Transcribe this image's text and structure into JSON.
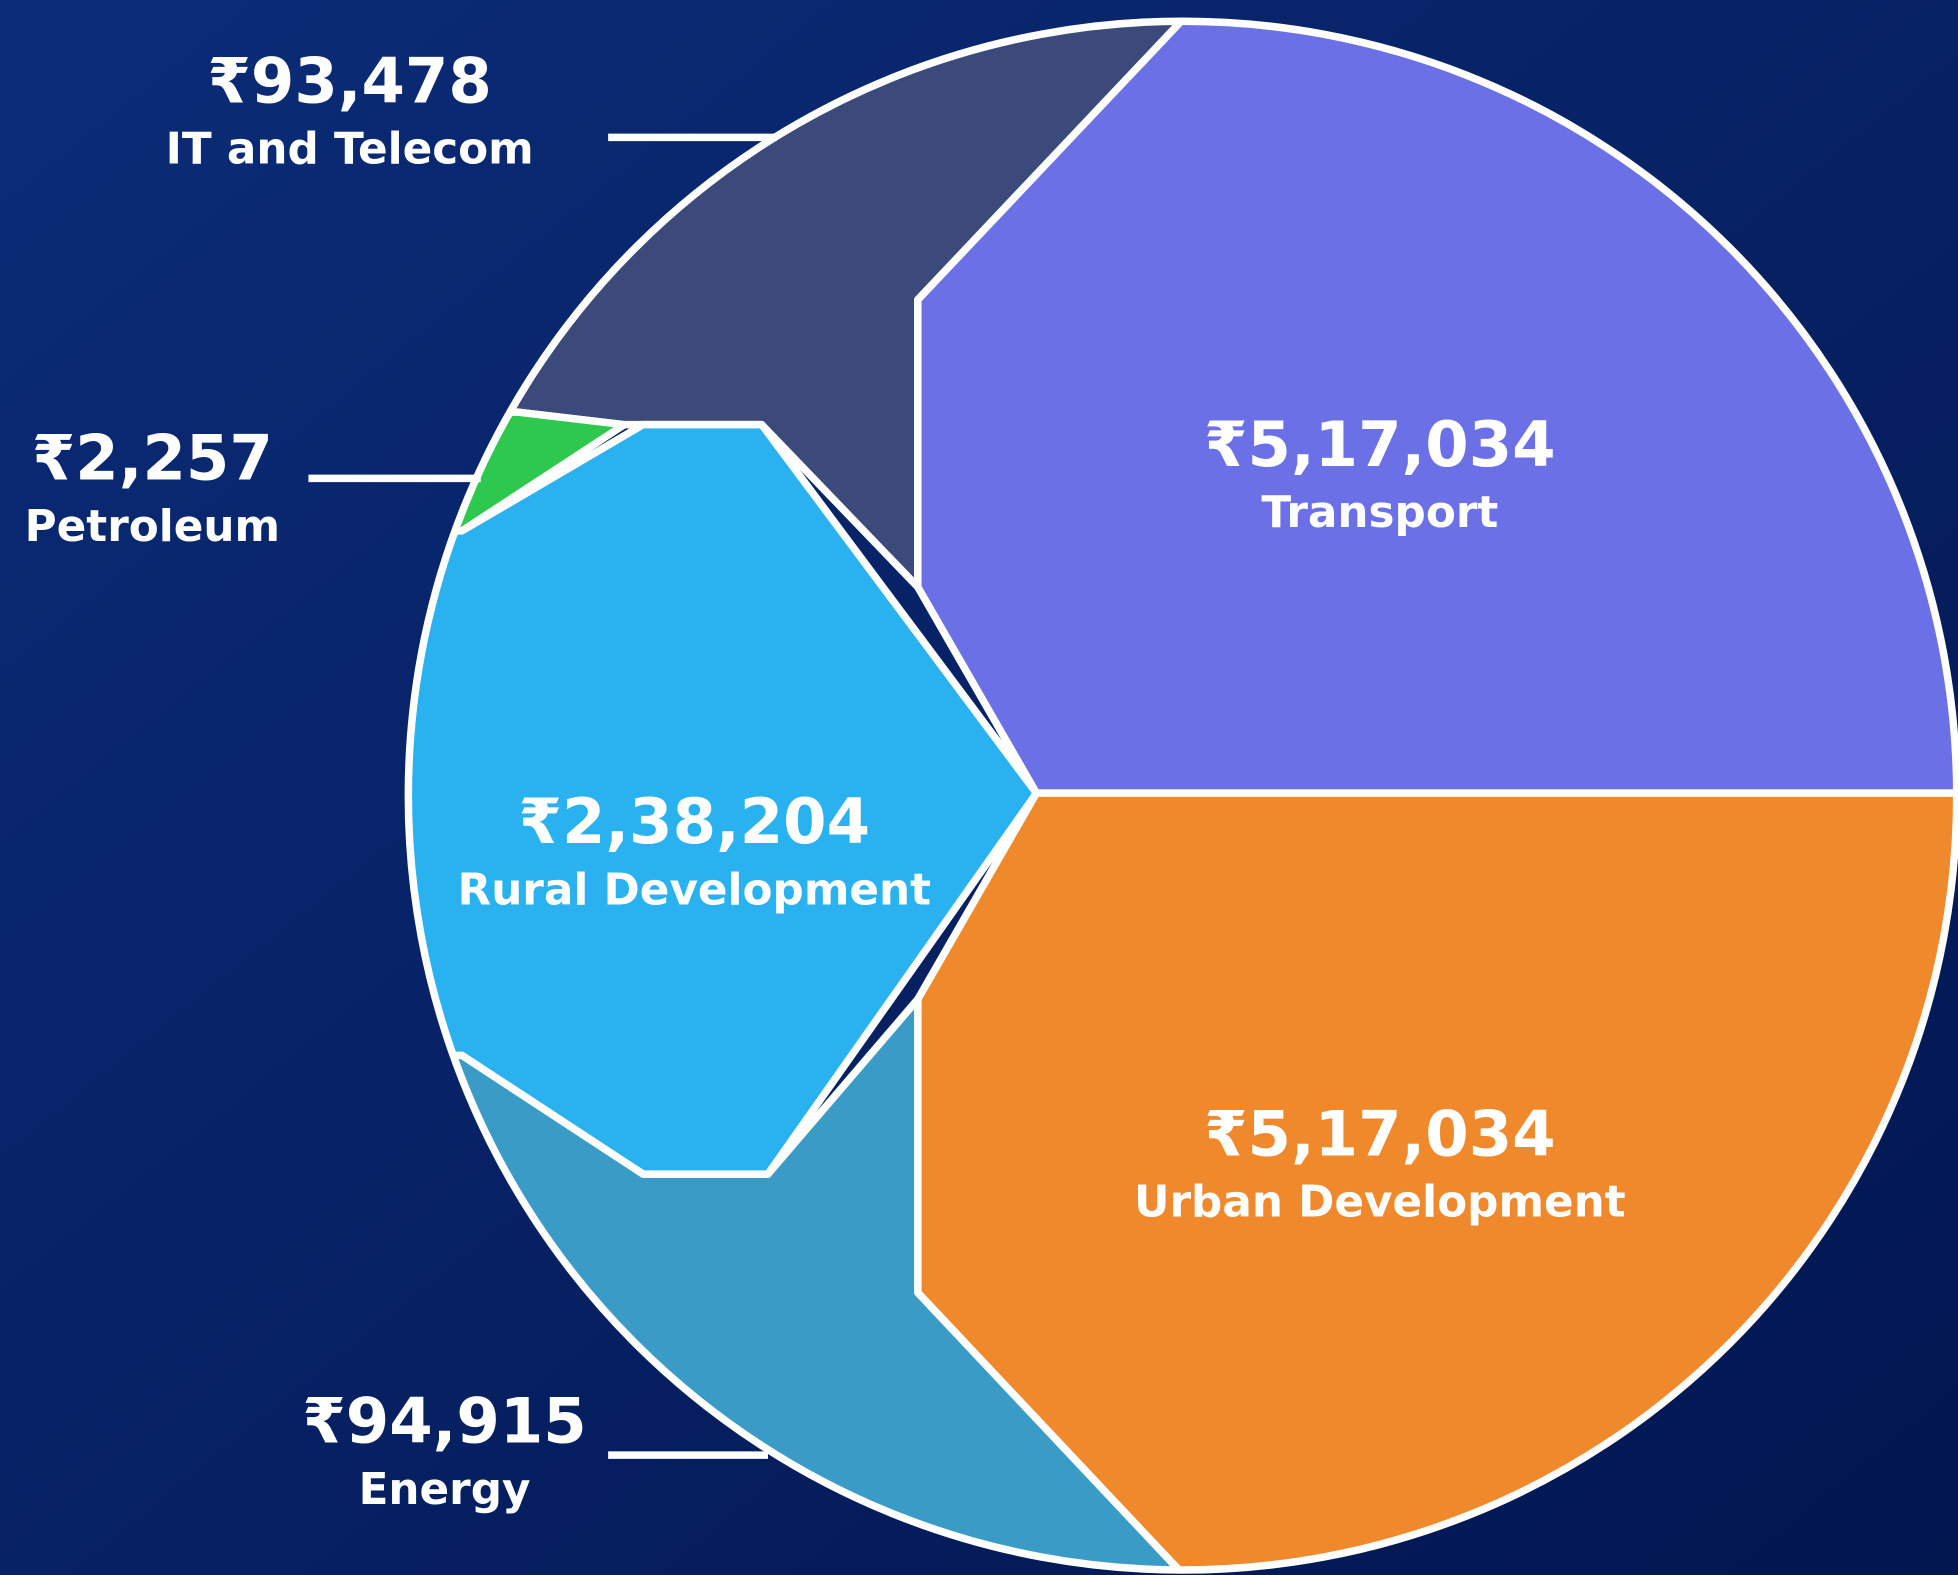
{
  "segments": [
    {
      "amount": "₹93,478",
      "name": "IT and Telecom"
    },
    {
      "amount": "₹2,257",
      "name": "Petroleum"
    },
    {
      "amount": "₹94,915",
      "name": "Energy"
    },
    {
      "amount": "₹5,17,034",
      "name": "Transport"
    },
    {
      "amount": "₹2,38,204",
      "name": "Rural Development"
    },
    {
      "amount": "₹5,17,034",
      "name": "Urban Development"
    }
  ]
}
